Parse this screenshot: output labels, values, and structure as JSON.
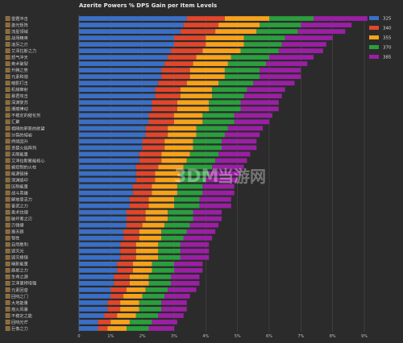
{
  "chart_data": {
    "type": "bar",
    "stacked": true,
    "orientation": "horizontal",
    "title": "Azerite Powers % DPS Gain per Item Levels",
    "xlabel": "",
    "ylabel": "",
    "xlim": [
      0,
      9
    ],
    "x_ticks": [
      "0",
      "1%",
      "2%",
      "3%",
      "4%",
      "5%",
      "6%",
      "7%",
      "8%",
      "9%"
    ],
    "grid": true,
    "legend_position": "top-right",
    "colors": [
      "#3b6fc6",
      "#e0462c",
      "#f7a21b",
      "#2b9e3e",
      "#9b1fa4"
    ],
    "categories": [
      "雷霆冲击",
      "激光矩阵",
      "流星领域",
      "战场精英",
      "凌厉之刃",
      "艾泽拉斯之力",
      "怒气冲天",
      "奥术破裂",
      "升腾之势",
      "元素和谐",
      "暗影打击",
      "机械窜射",
      "暴君攻击",
      "深渊复苏",
      "潮痕律动",
      "不稳定的催化剂",
      "汇聚",
      "相随的邪恶的欲望",
      "分裂的熔岩",
      "持续回升",
      "贪婪火焰阵列",
      "无限能量",
      "艾泽拉斯聚能核心",
      "被控制的火柱",
      "能源链接",
      "深渊烙印",
      "压制能量",
      "战斗英雄",
      "解放意志力",
      "奋武之力",
      "奥术纹理",
      "破坏者之刃",
      "刃锋爆",
      "振天狼",
      "韧性",
      "自然胜利",
      "毁灭光",
      "毁灭棱镜",
      "暗影能量",
      "晨星之力",
      "生命之源",
      "艾泽里特增强",
      "元素回音",
      "回响之门",
      "大地能量",
      "熔火风暴",
      "不稳定之能",
      "回响光芒",
      "巨像之力"
    ],
    "series": [
      {
        "name": "325",
        "values": [
          3.4,
          3.3,
          3.2,
          3.0,
          3.0,
          2.9,
          2.8,
          2.7,
          2.6,
          2.6,
          2.5,
          2.4,
          2.4,
          2.3,
          2.3,
          2.2,
          2.2,
          2.1,
          2.1,
          2.0,
          2.0,
          1.9,
          1.9,
          1.8,
          1.8,
          1.8,
          1.7,
          1.7,
          1.6,
          1.6,
          1.5,
          1.5,
          1.5,
          1.4,
          1.4,
          1.3,
          1.3,
          1.3,
          1.2,
          1.2,
          1.1,
          1.1,
          1.0,
          1.0,
          0.9,
          0.9,
          0.8,
          0.6,
          0.6
        ]
      },
      {
        "name": "340",
        "values": [
          1.2,
          1.1,
          1.1,
          1.0,
          1.0,
          1.0,
          0.9,
          0.9,
          0.9,
          0.9,
          0.9,
          0.8,
          0.8,
          0.8,
          0.8,
          0.8,
          0.8,
          0.7,
          0.7,
          0.7,
          0.7,
          0.7,
          0.7,
          0.7,
          0.6,
          0.6,
          0.6,
          0.6,
          0.6,
          0.6,
          0.6,
          0.6,
          0.5,
          0.5,
          0.5,
          0.5,
          0.5,
          0.5,
          0.5,
          0.5,
          0.5,
          0.5,
          0.5,
          0.4,
          0.4,
          0.4,
          0.4,
          0.4,
          0.3
        ]
      },
      {
        "name": "355",
        "values": [
          1.4,
          1.3,
          1.3,
          1.2,
          1.2,
          1.2,
          1.1,
          1.1,
          1.1,
          1.1,
          1.0,
          1.0,
          1.0,
          1.0,
          1.0,
          0.9,
          0.9,
          0.9,
          0.9,
          0.9,
          0.9,
          0.9,
          0.8,
          0.8,
          0.8,
          0.8,
          0.8,
          0.8,
          0.8,
          0.8,
          0.7,
          0.7,
          0.7,
          0.7,
          0.7,
          0.7,
          0.7,
          0.7,
          0.6,
          0.6,
          0.6,
          0.6,
          0.6,
          0.6,
          0.6,
          0.6,
          0.6,
          0.6,
          0.6
        ]
      },
      {
        "name": "370",
        "values": [
          1.4,
          1.3,
          1.3,
          1.3,
          1.2,
          1.2,
          1.2,
          1.2,
          1.1,
          1.1,
          1.1,
          1.1,
          1.0,
          1.0,
          1.0,
          1.0,
          1.0,
          1.0,
          0.9,
          0.9,
          0.9,
          0.9,
          0.9,
          0.9,
          0.9,
          0.8,
          0.8,
          0.8,
          0.8,
          0.8,
          0.8,
          0.8,
          0.8,
          0.8,
          0.7,
          0.7,
          0.7,
          0.7,
          0.7,
          0.7,
          0.7,
          0.7,
          0.7,
          0.7,
          0.7,
          0.7,
          0.7,
          0.7,
          0.7
        ]
      },
      {
        "name": "385",
        "values": [
          1.7,
          1.6,
          1.5,
          1.5,
          1.4,
          1.4,
          1.4,
          1.3,
          1.3,
          1.3,
          1.3,
          1.2,
          1.2,
          1.2,
          1.2,
          1.2,
          1.1,
          1.1,
          1.1,
          1.1,
          1.1,
          1.0,
          1.0,
          1.0,
          1.0,
          1.0,
          1.0,
          1.0,
          1.0,
          1.0,
          0.9,
          0.9,
          0.9,
          0.9,
          0.9,
          0.9,
          0.9,
          0.9,
          0.9,
          0.9,
          0.9,
          0.9,
          0.9,
          0.8,
          0.8,
          0.8,
          0.8,
          0.8,
          0.8
        ]
      }
    ]
  },
  "watermark": {
    "logo_text": "3DM",
    "text": "当游网"
  }
}
